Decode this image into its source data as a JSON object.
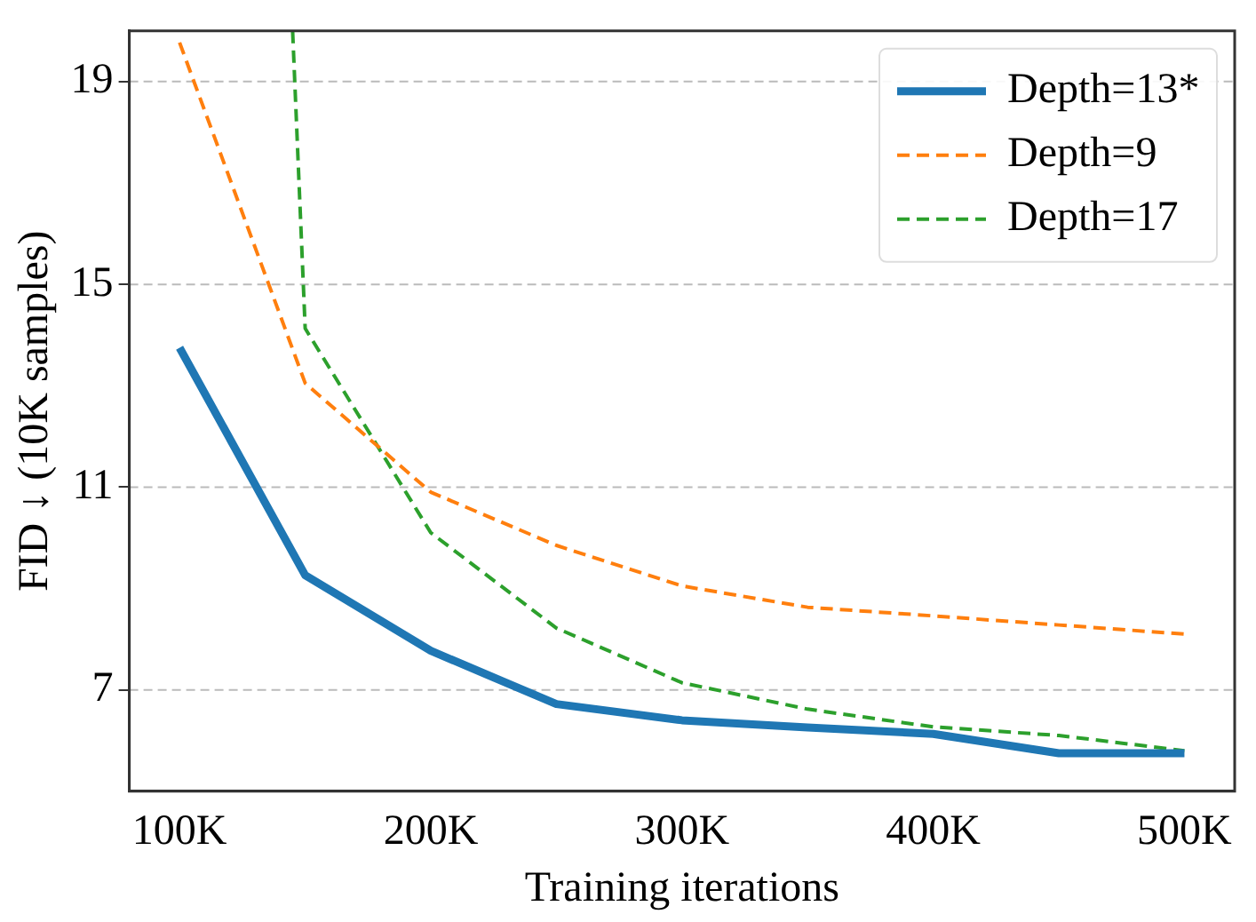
{
  "chart_data": {
    "type": "line",
    "xlabel": "Training iterations",
    "ylabel": "FID ↓ (10K samples)",
    "x": [
      100000,
      150000,
      200000,
      250000,
      300000,
      350000,
      400000,
      450000,
      500000
    ],
    "series": [
      {
        "name": "Depth=13*",
        "color": "#1f77b4",
        "line_style": "solid",
        "values": [
          13.75,
          9.26,
          7.77,
          6.72,
          6.4,
          6.26,
          6.13,
          5.75,
          5.75
        ]
      },
      {
        "name": "Depth=9",
        "color": "#ff7f0e",
        "line_style": "dashed",
        "values": [
          19.77,
          13.05,
          10.9,
          9.85,
          9.05,
          8.63,
          8.46,
          8.28,
          8.1
        ]
      },
      {
        "name": "Depth=17",
        "color": "#2ca02c",
        "line_style": "dashed",
        "x": [
          145000,
          150000,
          200000,
          250000,
          300000,
          350000,
          400000,
          450000,
          500000
        ],
        "values": [
          20,
          14.13,
          10.1,
          8.22,
          7.14,
          6.62,
          6.27,
          6.1,
          5.8
        ]
      }
    ],
    "xlim": [
      80000,
      520000
    ],
    "xticks": [
      {
        "value": 100000,
        "label": "100K"
      },
      {
        "value": 200000,
        "label": "200K"
      },
      {
        "value": 300000,
        "label": "300K"
      },
      {
        "value": 400000,
        "label": "400K"
      },
      {
        "value": 500000,
        "label": "500K"
      }
    ],
    "ylim": [
      5,
      20
    ],
    "yticks": [
      7,
      11,
      15,
      19
    ],
    "grid": "y",
    "legend": "top right",
    "marker": "none"
  }
}
